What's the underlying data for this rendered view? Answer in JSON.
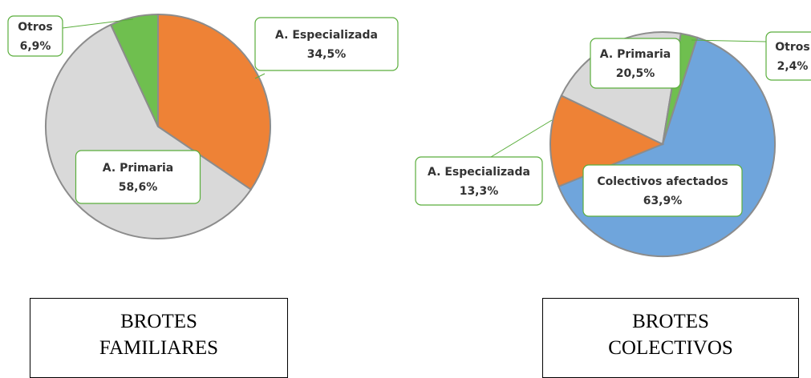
{
  "chart_data": [
    {
      "type": "pie",
      "title": "BROTES FAMILIARES",
      "categories": [
        "A. Especializada",
        "A. Primaria",
        "Otros"
      ],
      "values": [
        34.5,
        58.6,
        6.9
      ],
      "value_labels": [
        "34,5%",
        "58,6%",
        "6,9%"
      ],
      "colors": [
        "#ee8236",
        "#d9d9d9",
        "#6fbf4f"
      ]
    },
    {
      "type": "pie",
      "title": "BROTES COLECTIVOS",
      "categories": [
        "Colectivos afectados",
        "A. Especializada",
        "A. Primaria",
        "Otros"
      ],
      "values": [
        63.9,
        13.3,
        20.5,
        2.4
      ],
      "value_labels": [
        "63,9%",
        "13,3%",
        "20,5%",
        "2,4%"
      ],
      "colors": [
        "#6fa5dc",
        "#ee8236",
        "#d9d9d9",
        "#6fbf4f"
      ]
    }
  ]
}
